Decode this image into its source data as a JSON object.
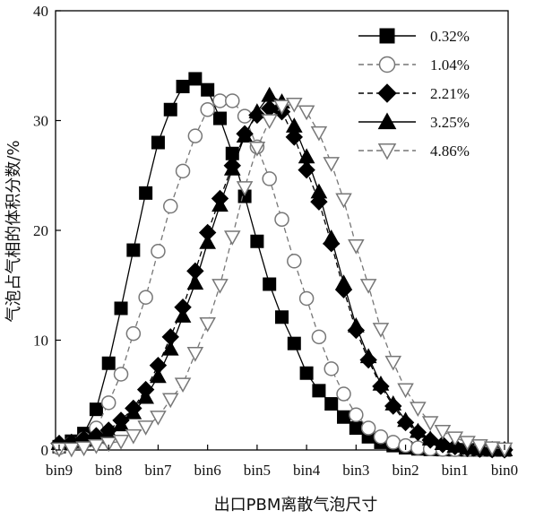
{
  "chart_data": {
    "type": "line",
    "categories": [
      "bin9",
      "bin8",
      "bin7",
      "bin6",
      "bin5",
      "bin4",
      "bin3",
      "bin2",
      "bin1",
      "bin0"
    ],
    "xlabel": "出口PBM离散气泡尺寸",
    "ylabel": "气泡占气相的体积分数/%",
    "ylim": [
      0,
      40
    ],
    "yticks": [
      0,
      10,
      20,
      30,
      40
    ],
    "grid": false,
    "legend_position": "top-right",
    "series": [
      {
        "name": "0.32%",
        "marker": "square-filled",
        "line": "solid",
        "x": [
          0,
          0.25,
          0.5,
          0.75,
          1,
          1.25,
          1.5,
          1.75,
          2,
          2.25,
          2.5,
          2.75,
          3,
          3.25,
          3.5,
          3.75,
          4,
          4.25,
          4.5,
          4.75,
          5,
          5.25,
          5.5,
          5.75,
          6,
          6.25,
          6.5,
          6.75,
          7,
          7.25,
          7.5,
          7.75,
          8,
          8.25,
          8.5,
          8.75,
          9
        ],
        "y": [
          0.3,
          0.8,
          1.5,
          3.7,
          7.9,
          12.9,
          18.2,
          23.4,
          28.0,
          31.0,
          33.1,
          33.8,
          32.8,
          30.2,
          27.0,
          23.1,
          19.0,
          15.1,
          12.1,
          9.7,
          7.0,
          5.4,
          4.2,
          3.0,
          2.0,
          1.2,
          0.7,
          0.4,
          0.2,
          0.1,
          0.05,
          0.03,
          0.02,
          0.01,
          0.01,
          0,
          0
        ]
      },
      {
        "name": "1.04%",
        "marker": "circle-open",
        "line": "dashed",
        "x": [
          0,
          0.25,
          0.5,
          0.75,
          1,
          1.25,
          1.5,
          1.75,
          2,
          2.25,
          2.5,
          2.75,
          3,
          3.25,
          3.5,
          3.75,
          4,
          4.25,
          4.5,
          4.75,
          5,
          5.25,
          5.5,
          5.75,
          6,
          6.25,
          6.5,
          6.75,
          7,
          7.25,
          7.5,
          7.75,
          8,
          8.25,
          8.5,
          8.75,
          9
        ],
        "y": [
          0.2,
          0.6,
          1.0,
          2.0,
          4.3,
          6.9,
          10.6,
          13.9,
          18.1,
          22.2,
          25.4,
          28.6,
          31.0,
          31.8,
          31.8,
          30.4,
          27.6,
          24.7,
          21.0,
          17.2,
          13.8,
          10.3,
          7.4,
          5.1,
          3.2,
          2.0,
          1.2,
          0.7,
          0.4,
          0.2,
          0.1,
          0.05,
          0.03,
          0.02,
          0.01,
          0,
          0
        ]
      },
      {
        "name": "2.21%",
        "marker": "diamond-filled",
        "line": "dashed",
        "x": [
          0,
          0.25,
          0.5,
          0.75,
          1,
          1.25,
          1.5,
          1.75,
          2,
          2.25,
          2.5,
          2.75,
          3,
          3.25,
          3.5,
          3.75,
          4,
          4.25,
          4.5,
          4.75,
          5,
          5.25,
          5.5,
          5.75,
          6,
          6.25,
          6.5,
          6.75,
          7,
          7.25,
          7.5,
          7.75,
          8,
          8.25,
          8.5,
          8.75,
          9
        ],
        "y": [
          0.6,
          0.7,
          1.0,
          1.3,
          1.8,
          2.7,
          3.8,
          5.5,
          7.7,
          10.3,
          13.0,
          16.3,
          19.8,
          22.9,
          25.9,
          28.8,
          30.5,
          31.1,
          30.8,
          28.5,
          25.5,
          22.6,
          18.8,
          14.6,
          10.9,
          8.2,
          5.8,
          4.0,
          2.5,
          1.6,
          0.9,
          0.5,
          0.3,
          0.15,
          0.07,
          0.03,
          0.01
        ]
      },
      {
        "name": "3.25%",
        "marker": "triangle-filled",
        "line": "solid",
        "x": [
          0,
          0.25,
          0.5,
          0.75,
          1,
          1.25,
          1.5,
          1.75,
          2,
          2.25,
          2.5,
          2.75,
          3,
          3.25,
          3.5,
          3.75,
          4,
          4.25,
          4.5,
          4.75,
          5,
          5.25,
          5.5,
          5.75,
          6,
          6.25,
          6.5,
          6.75,
          7,
          7.25,
          7.5,
          7.75,
          8,
          8.25,
          8.5,
          8.75,
          9
        ],
        "y": [
          0.6,
          0.7,
          0.9,
          1.2,
          1.7,
          2.3,
          3.4,
          4.8,
          6.7,
          9.2,
          12.2,
          15.2,
          18.9,
          22.3,
          25.6,
          28.6,
          30.8,
          32.3,
          31.7,
          29.5,
          26.7,
          23.5,
          19.3,
          15.2,
          11.3,
          8.5,
          6.0,
          4.2,
          2.7,
          1.7,
          1.0,
          0.6,
          0.35,
          0.2,
          0.1,
          0.05,
          0.02
        ]
      },
      {
        "name": "4.86%",
        "marker": "triangle-down-open",
        "line": "dashed",
        "x": [
          0,
          0.25,
          0.5,
          0.75,
          1,
          1.25,
          1.5,
          1.75,
          2,
          2.25,
          2.5,
          2.75,
          3,
          3.25,
          3.5,
          3.75,
          4,
          4.25,
          4.5,
          4.75,
          5,
          5.25,
          5.5,
          5.75,
          6,
          6.25,
          6.5,
          6.75,
          7,
          7.25,
          7.5,
          7.75,
          8,
          8.25,
          8.5,
          8.75,
          9
        ],
        "y": [
          0.1,
          0.1,
          0.2,
          0.4,
          0.6,
          0.8,
          1.3,
          2.1,
          3.0,
          4.6,
          6.0,
          8.8,
          11.5,
          15.0,
          19.4,
          23.9,
          27.5,
          30.0,
          31.3,
          31.5,
          30.8,
          28.9,
          26.1,
          22.8,
          18.6,
          15.0,
          11.0,
          8.0,
          5.5,
          3.8,
          2.5,
          1.7,
          1.1,
          0.7,
          0.4,
          0.2,
          0.1
        ]
      }
    ]
  }
}
